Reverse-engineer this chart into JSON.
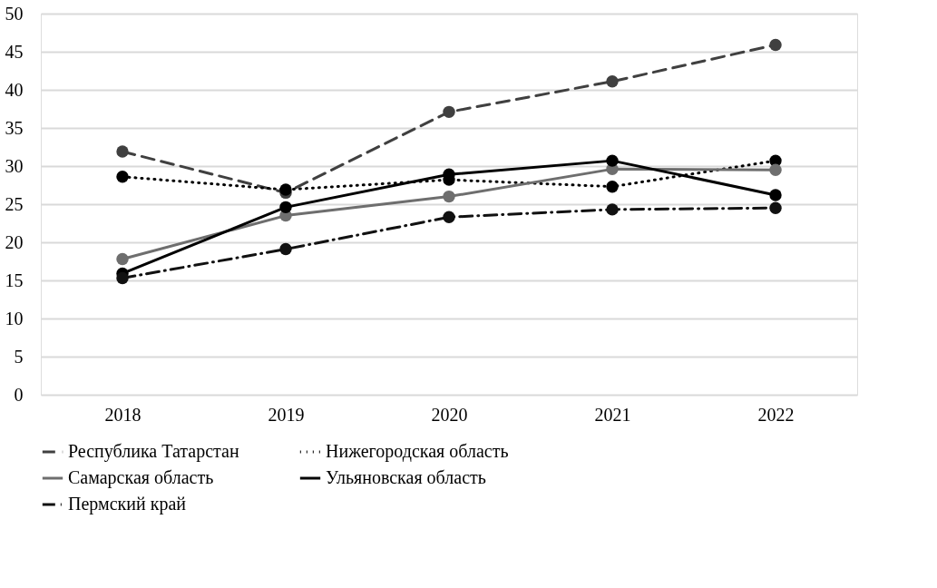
{
  "chart_data": {
    "type": "line",
    "categories": [
      "2018",
      "2019",
      "2020",
      "2021",
      "2022"
    ],
    "series": [
      {
        "name": "Республика Татарстан",
        "color": "#404040",
        "line_style": "dashed",
        "values": [
          31.9,
          26.5,
          37.1,
          41.1,
          45.9
        ]
      },
      {
        "name": "Нижегородская область",
        "color": "#000000",
        "line_style": "dotted",
        "values": [
          28.6,
          26.9,
          28.2,
          27.3,
          30.7
        ]
      },
      {
        "name": "Самарская область",
        "color": "#6e6e6e",
        "line_style": "solid",
        "values": [
          17.8,
          23.5,
          26.0,
          29.6,
          29.5
        ]
      },
      {
        "name": "Ульяновская область",
        "color": "#000000",
        "line_style": "solid",
        "values": [
          15.9,
          24.6,
          28.9,
          30.7,
          26.2
        ]
      },
      {
        "name": "Пермский край",
        "color": "#111111",
        "line_style": "dashdot",
        "values": [
          15.3,
          19.1,
          23.3,
          24.3,
          24.5
        ]
      }
    ],
    "ylim": [
      0,
      50
    ],
    "yticks": [
      0,
      5,
      10,
      15,
      20,
      25,
      30,
      35,
      40,
      45,
      50
    ],
    "grid": "y",
    "legend": "bottom",
    "marker": "circle"
  }
}
